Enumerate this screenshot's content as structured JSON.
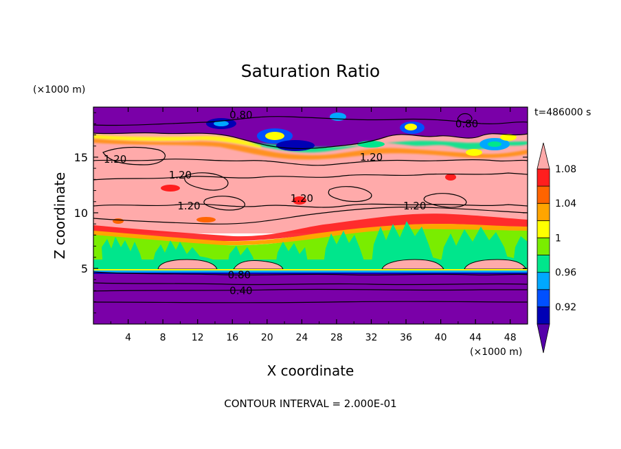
{
  "chart_data": {
    "type": "heatmap",
    "title": "Saturation Ratio",
    "xlabel": "X coordinate",
    "ylabel": "Z coordinate",
    "x_unit": "(×1000 m)",
    "y_unit": "(×1000 m)",
    "time_label": "t=486000 s",
    "footer": "CONTOUR INTERVAL = 2.000E-01",
    "xlim": [
      0,
      50
    ],
    "ylim": [
      0,
      19.5
    ],
    "x_ticks": [
      4,
      8,
      12,
      16,
      20,
      24,
      28,
      32,
      36,
      40,
      44,
      48
    ],
    "y_ticks": [
      5,
      10,
      15
    ],
    "colorbar": {
      "levels": [
        0.92,
        0.94,
        0.96,
        0.98,
        1.0,
        1.02,
        1.04,
        1.06,
        1.08,
        1.1
      ],
      "labels": [
        "0.92",
        "0.96",
        "1",
        "1.04",
        "1.08"
      ],
      "colors": [
        "#5500aa",
        "#0000b4",
        "#0050ff",
        "#00a8ff",
        "#00e68c",
        "#7aed00",
        "#ffff00",
        "#ffa500",
        "#ff6400",
        "#ff1e1e",
        "#ffaaaa"
      ]
    },
    "contour_labels": [
      {
        "text": "0.80",
        "x": 17,
        "y": 18.8
      },
      {
        "text": "0.80",
        "x": 43,
        "y": 18.0
      },
      {
        "text": "1.20",
        "x": 2.5,
        "y": 14.8
      },
      {
        "text": "1.20",
        "x": 10,
        "y": 13.4
      },
      {
        "text": "1.20",
        "x": 32,
        "y": 15.0
      },
      {
        "text": "1.20",
        "x": 24,
        "y": 11.3
      },
      {
        "text": "1.20",
        "x": 11,
        "y": 10.6
      },
      {
        "text": "1.20",
        "x": 37,
        "y": 10.6
      },
      {
        "text": "0.80",
        "x": 16.8,
        "y": 4.4
      },
      {
        "text": "0.40",
        "x": 17,
        "y": 3.0
      }
    ],
    "grid": false
  }
}
